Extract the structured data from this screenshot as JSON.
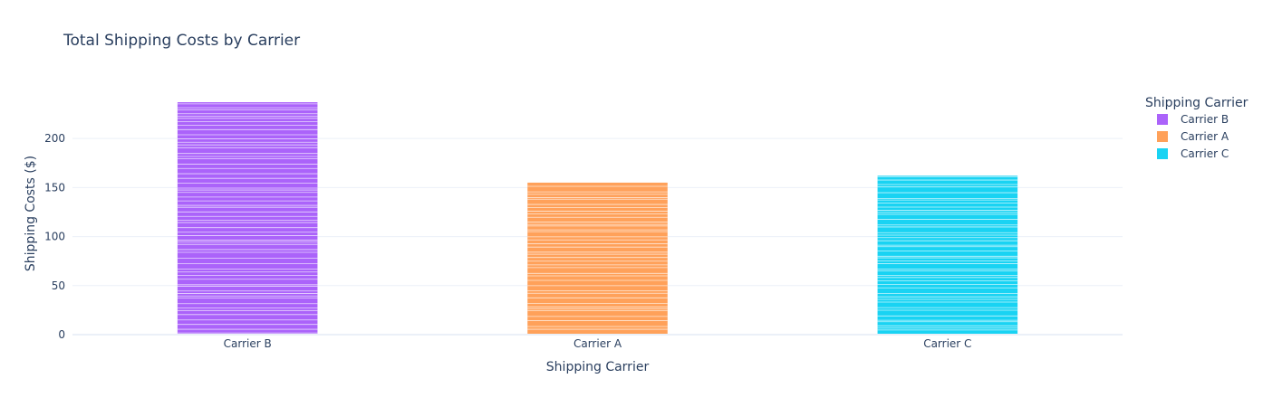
{
  "chart_data": {
    "type": "bar",
    "title": "Total Shipping Costs by Carrier",
    "xlabel": "Shipping Carrier",
    "ylabel": "Shipping Costs ($)",
    "categories": [
      "Carrier B",
      "Carrier A",
      "Carrier C"
    ],
    "values": [
      237,
      155,
      162
    ],
    "colors": [
      "#AB63FA",
      "#FFA15A",
      "#19D3F3"
    ],
    "ylim": [
      0,
      249
    ],
    "yticks": [
      0,
      50,
      100,
      150,
      200
    ],
    "grid": true,
    "stacked_segments": true,
    "legend": {
      "title": "Shipping Carrier",
      "placement": "right",
      "entries": [
        "Carrier B",
        "Carrier A",
        "Carrier C"
      ]
    }
  }
}
